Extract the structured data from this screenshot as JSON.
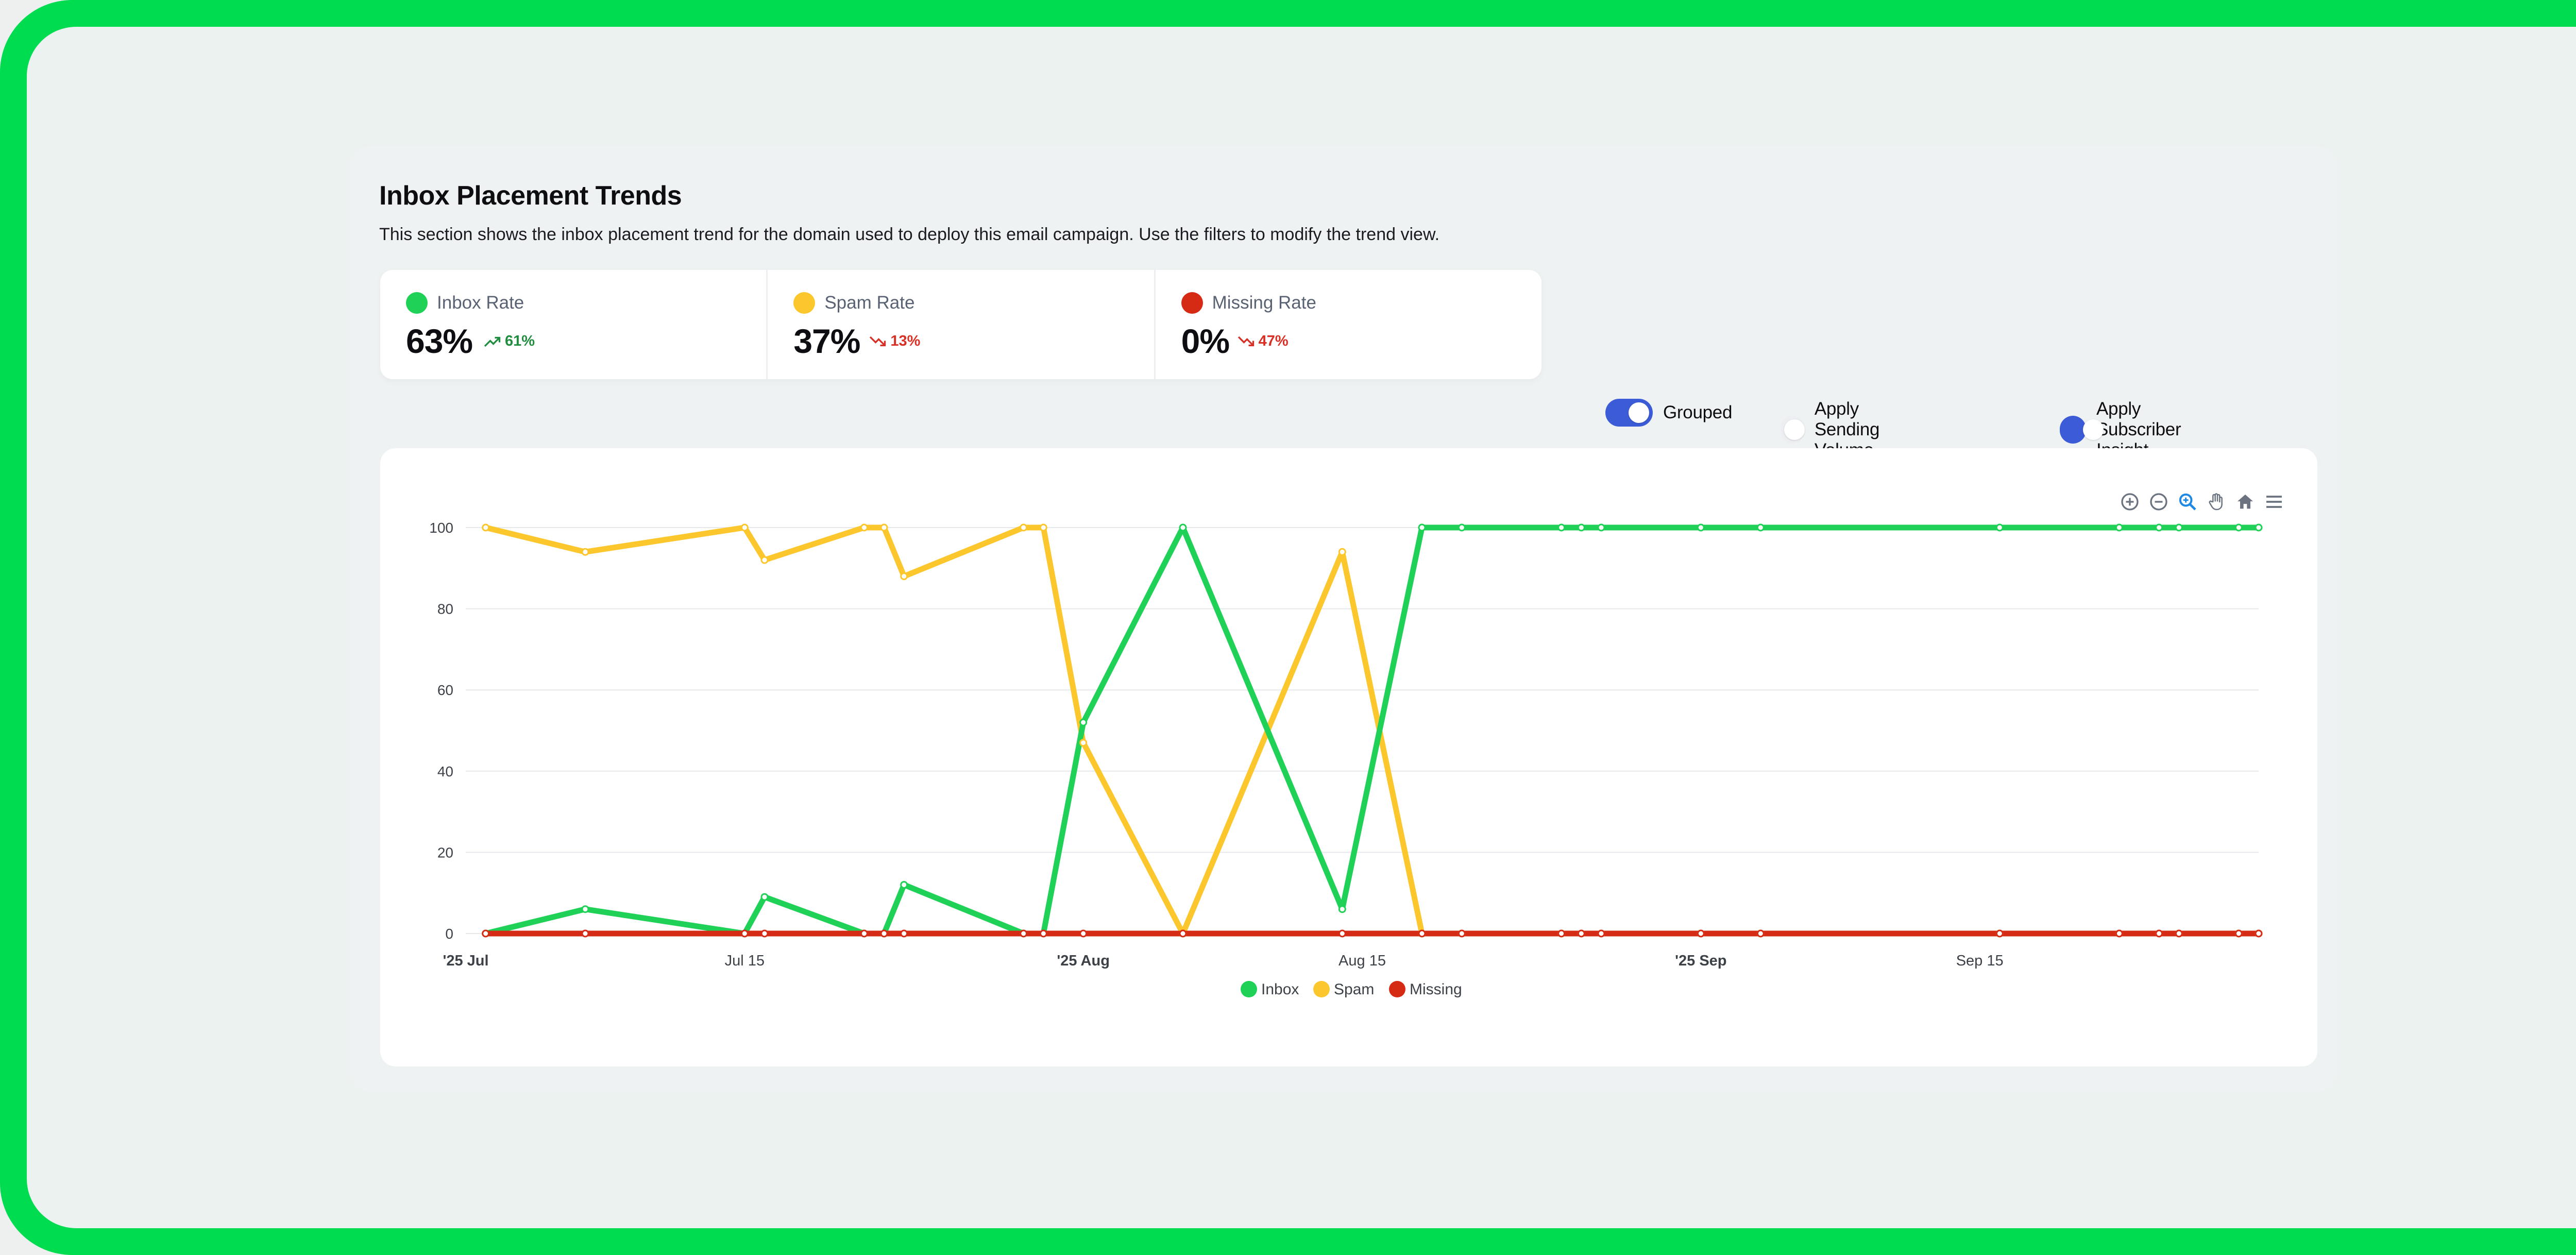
{
  "header": {
    "title": "Inbox Placement Trends",
    "subtitle": "This section shows the inbox placement trend for the domain used to deploy this email campaign. Use the filters to modify the trend view."
  },
  "stats": [
    {
      "label": "Inbox Rate",
      "value": "63%",
      "change": "61%",
      "direction": "up",
      "color": "#1fd156",
      "change_color": "#1e8e3e"
    },
    {
      "label": "Spam Rate",
      "value": "37%",
      "change": "13%",
      "direction": "down",
      "color": "#fcc62d",
      "change_color": "#d93025"
    },
    {
      "label": "Missing Rate",
      "value": "0%",
      "change": "47%",
      "direction": "down",
      "color": "#d52b14",
      "change_color": "#d93025"
    }
  ],
  "toggles": [
    {
      "label": "Grouped",
      "on": true
    },
    {
      "label": "Apply Sending Volume",
      "on": false
    },
    {
      "label": "Apply Subscriber Insight",
      "on": true
    }
  ],
  "toolbar_icons": [
    "zoom-in-icon",
    "zoom-out-icon",
    "zoom-select-icon",
    "pan-hand-icon",
    "home-reset-icon",
    "menu-icon"
  ],
  "chart_data": {
    "type": "line",
    "xlabel": "",
    "ylabel": "",
    "ylim": [
      0,
      100
    ],
    "yticks": [
      "0",
      "20",
      "40",
      "60",
      "80",
      "100"
    ],
    "xticks": [
      {
        "date": "2025-07-01",
        "label": "'25 Jul",
        "bold": true
      },
      {
        "date": "2025-07-15",
        "label": "Jul 15",
        "bold": false
      },
      {
        "date": "2025-08-01",
        "label": "'25 Aug",
        "bold": true
      },
      {
        "date": "2025-08-15",
        "label": "Aug 15",
        "bold": false
      },
      {
        "date": "2025-09-01",
        "label": "'25 Sep",
        "bold": true
      },
      {
        "date": "2025-09-15",
        "label": "Sep 15",
        "bold": false
      }
    ],
    "xlim": [
      "2025-07-01",
      "2025-09-29"
    ],
    "legend_position": "bottom",
    "x": [
      "2025-07-02",
      "2025-07-07",
      "2025-07-15",
      "2025-07-16",
      "2025-07-21",
      "2025-07-22",
      "2025-07-23",
      "2025-07-29",
      "2025-07-30",
      "2025-08-01",
      "2025-08-06",
      "2025-08-14",
      "2025-08-18",
      "2025-08-20",
      "2025-08-25",
      "2025-08-26",
      "2025-08-27",
      "2025-09-01",
      "2025-09-04",
      "2025-09-16",
      "2025-09-22",
      "2025-09-24",
      "2025-09-25",
      "2025-09-28",
      "2025-09-29"
    ],
    "series": [
      {
        "name": "Inbox",
        "color": "#1fd156",
        "values": [
          0,
          6,
          0,
          9,
          0,
          0,
          12,
          0,
          0,
          52,
          100,
          6,
          100,
          100,
          100,
          100,
          100,
          100,
          100,
          100,
          100,
          100,
          100,
          100,
          100
        ]
      },
      {
        "name": "Spam",
        "color": "#fcc62d",
        "values": [
          100,
          94,
          100,
          92,
          100,
          100,
          88,
          100,
          100,
          47,
          0,
          94,
          0,
          0,
          0,
          0,
          0,
          0,
          0,
          0,
          0,
          0,
          0,
          0,
          0
        ]
      },
      {
        "name": "Missing",
        "color": "#d52b14",
        "values": [
          0,
          0,
          0,
          0,
          0,
          0,
          0,
          0,
          0,
          0,
          0,
          0,
          0,
          0,
          0,
          0,
          0,
          0,
          0,
          0,
          0,
          0,
          0,
          0,
          0
        ]
      }
    ]
  }
}
